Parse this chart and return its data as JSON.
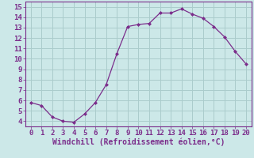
{
  "x": [
    0,
    1,
    2,
    3,
    4,
    5,
    6,
    7,
    8,
    9,
    10,
    11,
    12,
    13,
    14,
    15,
    16,
    17,
    18,
    19,
    20
  ],
  "y": [
    5.8,
    5.5,
    4.4,
    4.0,
    3.9,
    4.7,
    5.8,
    7.5,
    10.5,
    13.1,
    13.3,
    13.4,
    14.4,
    14.4,
    14.8,
    14.3,
    13.9,
    13.1,
    12.1,
    10.7,
    9.5
  ],
  "line_color": "#7b2d8b",
  "marker": "D",
  "marker_size": 2.0,
  "bg_color": "#cce8e8",
  "grid_color": "#aacccc",
  "xlabel": "Windchill (Refroidissement éolien,°C)",
  "xlabel_color": "#7b2d8b",
  "xlabel_fontsize": 7.0,
  "tick_color": "#7b2d8b",
  "tick_fontsize": 6.5,
  "ylim": [
    3.5,
    15.5
  ],
  "xlim": [
    -0.5,
    20.5
  ],
  "yticks": [
    4,
    5,
    6,
    7,
    8,
    9,
    10,
    11,
    12,
    13,
    14,
    15
  ],
  "xticks": [
    0,
    1,
    2,
    3,
    4,
    5,
    6,
    7,
    8,
    9,
    10,
    11,
    12,
    13,
    14,
    15,
    16,
    17,
    18,
    19,
    20
  ]
}
